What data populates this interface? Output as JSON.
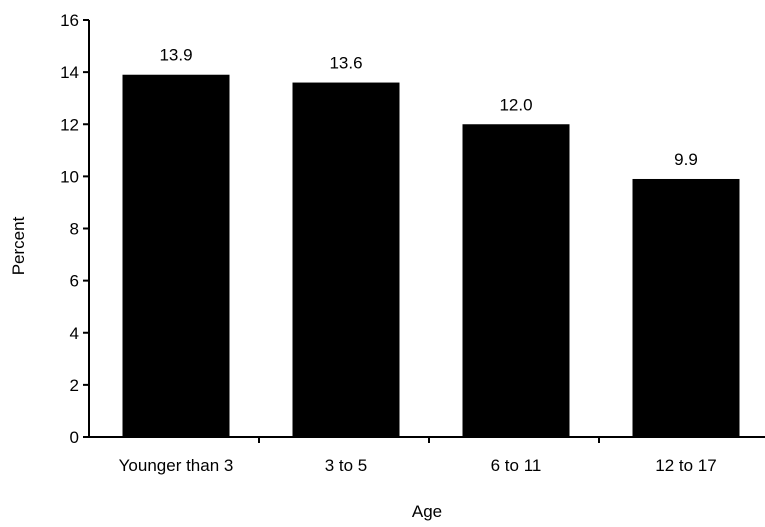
{
  "chart_data": {
    "type": "bar",
    "categories": [
      "Younger than 3",
      "3 to 5",
      "6 to 11",
      "12 to 17"
    ],
    "values": [
      13.9,
      13.6,
      12.0,
      9.9
    ],
    "data_labels": [
      "13.9",
      "13.6",
      "12.0",
      "9.9"
    ],
    "title": "",
    "xlabel": "Age",
    "ylabel": "Percent",
    "ylim": [
      0,
      16
    ],
    "yticks": [
      0,
      2,
      4,
      6,
      8,
      10,
      12,
      14,
      16
    ],
    "ytick_labels": [
      "0",
      "2",
      "4",
      "6",
      "8",
      "10",
      "12",
      "14",
      "16"
    ],
    "grid": false,
    "legend": "none",
    "bar_color": "#000000"
  }
}
